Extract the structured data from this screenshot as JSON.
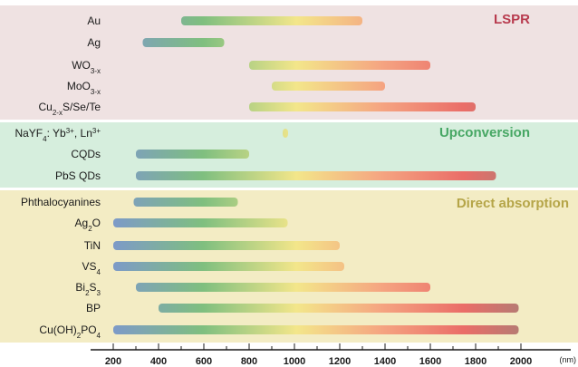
{
  "chart_data": {
    "type": "bar",
    "orientation": "horizontal-range",
    "x_unit": "(nm)",
    "xlim": [
      200,
      2000
    ],
    "x_ticks": [
      200,
      400,
      600,
      800,
      1000,
      1200,
      1400,
      1600,
      1800,
      2000
    ],
    "colors": {
      "lspr_bg": "#efe2e2",
      "upconversion_bg": "#d6eedd",
      "direct_bg": "#f3ecc4",
      "lspr_title": "#b83b4e",
      "upconversion_title": "#47a764",
      "direct_title": "#b5a548",
      "grad_blue": "#7d9ac8",
      "grad_green": "#7fbf7f",
      "grad_yellow": "#f3e68a",
      "grad_salmon": "#f5a481",
      "grad_red": "#ea6d68",
      "grad_brown": "#b57b73"
    },
    "groups": [
      {
        "title": "LSPR",
        "items": [
          {
            "label": [
              "Au"
            ],
            "start": 500,
            "end": 1300
          },
          {
            "label": [
              "Ag"
            ],
            "start": 330,
            "end": 690
          },
          {
            "label": [
              "WO",
              "3-x"
            ],
            "start": 800,
            "end": 1600
          },
          {
            "label": [
              "MoO",
              "3-x"
            ],
            "start": 900,
            "end": 1400
          },
          {
            "label": [
              "Cu",
              "2-x",
              "S/Se/Te"
            ],
            "start": 800,
            "end": 1800
          }
        ]
      },
      {
        "title": "Upconversion",
        "items": [
          {
            "label": [
              "NaYF",
              "4",
              ": Yb",
              "3+",
              ", Ln",
              "3+"
            ],
            "start": 960,
            "end": 980
          },
          {
            "label": [
              "CQDs"
            ],
            "start": 300,
            "end": 800
          },
          {
            "label": [
              "PbS QDs"
            ],
            "start": 300,
            "end": 1890
          }
        ]
      },
      {
        "title": "Direct absorption",
        "items": [
          {
            "label": [
              "Phthalocyanines"
            ],
            "start": 290,
            "end": 750
          },
          {
            "label": [
              "Ag",
              "2",
              "O"
            ],
            "start": 200,
            "end": 970
          },
          {
            "label": [
              "TiN"
            ],
            "start": 200,
            "end": 1200
          },
          {
            "label": [
              "VS",
              "4"
            ],
            "start": 200,
            "end": 1220
          },
          {
            "label": [
              "Bi",
              "2",
              "S",
              "3"
            ],
            "start": 300,
            "end": 1600
          },
          {
            "label": [
              "BP"
            ],
            "start": 400,
            "end": 1990
          },
          {
            "label": [
              "Cu(OH)",
              "2",
              "PO",
              "4"
            ],
            "start": 200,
            "end": 1990
          }
        ]
      }
    ]
  }
}
